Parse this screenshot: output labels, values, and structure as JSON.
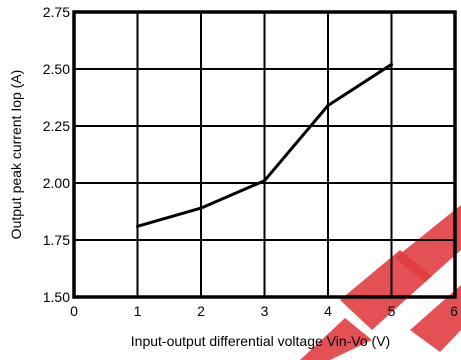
{
  "chart_data": {
    "type": "line",
    "title": "",
    "xlabel": "Input-output differential voltage Vin-Vo (V)",
    "ylabel": "Output peak current Iop (A)",
    "xlim": [
      0,
      6
    ],
    "ylim": [
      1.5,
      2.75
    ],
    "xticks": [
      0,
      1,
      2,
      3,
      4,
      5,
      6
    ],
    "yticks": [
      1.5,
      1.75,
      2.0,
      2.25,
      2.5,
      2.75
    ],
    "xtick_labels": [
      "0",
      "1",
      "2",
      "3",
      "4",
      "5",
      "6"
    ],
    "ytick_labels": [
      "1.50",
      "1.75",
      "2.00",
      "2.25",
      "2.50",
      "2.75"
    ],
    "grid": true,
    "series": [
      {
        "x": [
          1,
          2,
          3,
          4,
          5
        ],
        "y": [
          1.81,
          1.89,
          2.01,
          2.34,
          2.52
        ]
      }
    ],
    "colors": {
      "line": "#000000",
      "grid": "#000000",
      "watermark": "#e0393e"
    }
  }
}
